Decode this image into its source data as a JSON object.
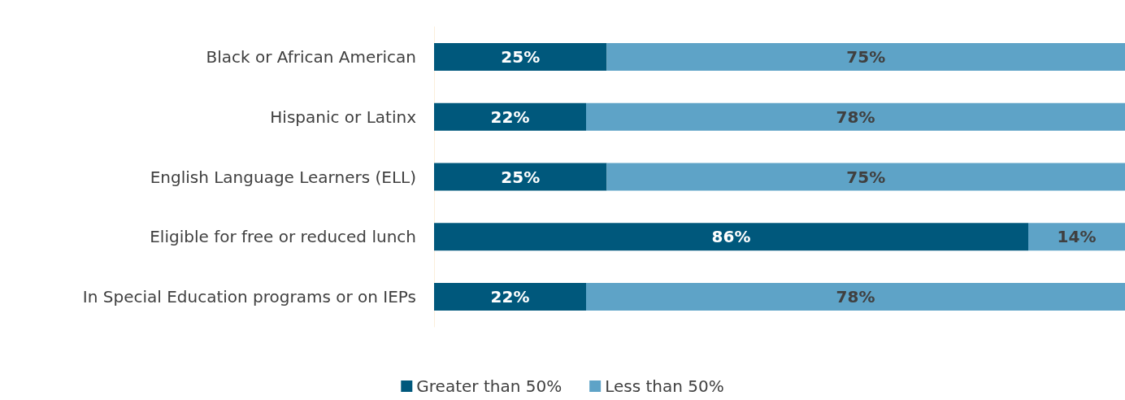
{
  "chart_data": {
    "type": "bar",
    "orientation": "horizontal",
    "stacked": true,
    "categories": [
      "Black or African American",
      "Hispanic or Latinx",
      "English Language Learners (ELL)",
      "Eligible for free or reduced lunch",
      "In Special Education programs or on IEPs"
    ],
    "series": [
      {
        "name": "Greater than 50%",
        "color": "#00587c",
        "values": [
          25,
          22,
          25,
          86,
          22
        ],
        "value_labels": [
          "25%",
          "22%",
          "25%",
          "86%",
          "22%"
        ]
      },
      {
        "name": "Less than 50%",
        "color": "#5ea3c7",
        "values": [
          75,
          78,
          75,
          14,
          78
        ],
        "value_labels": [
          "75%",
          "78%",
          "75%",
          "14%",
          "78%"
        ]
      }
    ],
    "xlim": [
      0,
      100
    ],
    "tick_labels": "y",
    "legend": "bottom"
  }
}
